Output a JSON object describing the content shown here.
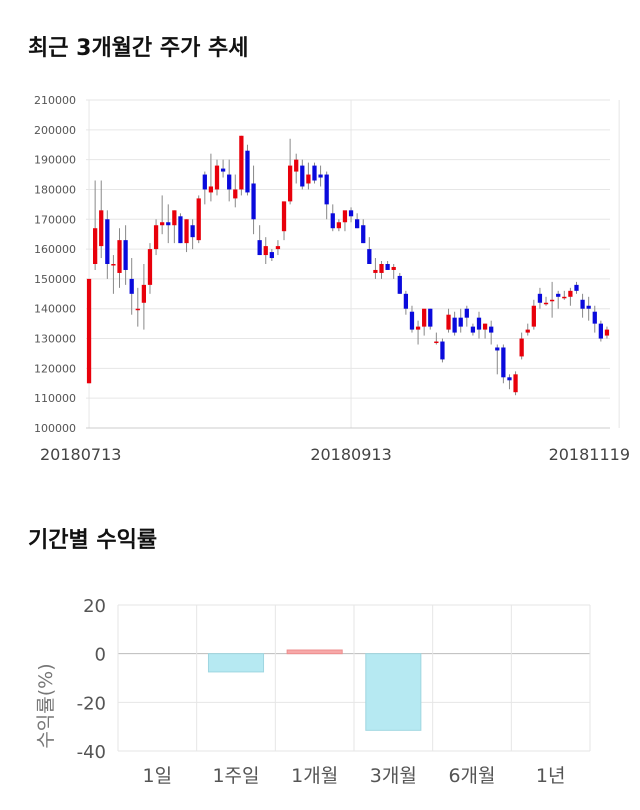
{
  "titles": {
    "price": "최근 3개월간 주가 추세",
    "returns": "기간별 수익률"
  },
  "chart_data": [
    {
      "type": "candlestick",
      "title": "최근 3개월간 주가 추세",
      "ylim": [
        100000,
        210000
      ],
      "y_ticks": [
        "100000",
        "110000",
        "120000",
        "130000",
        "140000",
        "150000",
        "160000",
        "170000",
        "180000",
        "190000",
        "200000",
        "210000"
      ],
      "x_tick_labels": [
        {
          "index": 0,
          "label": "20180713"
        },
        {
          "index": 43,
          "label": "20180913"
        },
        {
          "index": 87,
          "label": "20181119"
        }
      ],
      "colors": {
        "up": "#e8000b",
        "down": "#0a0adc",
        "wick": "#888888"
      },
      "grid": true,
      "ohlc": [
        [
          115000,
          150000,
          115000,
          150000
        ],
        [
          155000,
          183000,
          153000,
          167000
        ],
        [
          161000,
          183000,
          157000,
          173000
        ],
        [
          170000,
          173000,
          150000,
          155000
        ],
        [
          155000,
          158000,
          145000,
          155000
        ],
        [
          152000,
          167000,
          147000,
          163000
        ],
        [
          163000,
          168000,
          148000,
          153000
        ],
        [
          150000,
          157000,
          138000,
          145000
        ],
        [
          140000,
          147000,
          134000,
          140000
        ],
        [
          142000,
          155000,
          133000,
          148000
        ],
        [
          148000,
          162000,
          145000,
          160000
        ],
        [
          160000,
          170000,
          158000,
          168000
        ],
        [
          168000,
          178000,
          165000,
          169000
        ],
        [
          169000,
          175000,
          162000,
          168000
        ],
        [
          168000,
          173000,
          162000,
          173000
        ],
        [
          171000,
          172000,
          162000,
          162000
        ],
        [
          162000,
          170000,
          159000,
          170000
        ],
        [
          168000,
          170000,
          160000,
          164000
        ],
        [
          163000,
          178000,
          162000,
          177000
        ],
        [
          185000,
          186000,
          175000,
          180000
        ],
        [
          179000,
          192000,
          176000,
          181000
        ],
        [
          180000,
          190000,
          178000,
          188000
        ],
        [
          187000,
          190000,
          184000,
          186000
        ],
        [
          185000,
          190000,
          176000,
          180000
        ],
        [
          177000,
          185000,
          174000,
          180000
        ],
        [
          180000,
          198000,
          178000,
          198000
        ],
        [
          193000,
          195000,
          178000,
          179000
        ],
        [
          182000,
          188000,
          165000,
          170000
        ],
        [
          163000,
          168000,
          158000,
          158000
        ],
        [
          158000,
          164000,
          155000,
          161000
        ],
        [
          159000,
          160000,
          156000,
          157000
        ],
        [
          160000,
          163000,
          158000,
          161000
        ],
        [
          166000,
          176000,
          163000,
          176000
        ],
        [
          176000,
          197000,
          175000,
          188000
        ],
        [
          186000,
          192000,
          182000,
          190000
        ],
        [
          188000,
          190000,
          180000,
          181000
        ],
        [
          182000,
          189000,
          180000,
          185000
        ],
        [
          188000,
          189000,
          182000,
          183000
        ],
        [
          185000,
          188000,
          181000,
          184000
        ],
        [
          185000,
          186000,
          170000,
          175000
        ],
        [
          172000,
          175000,
          166000,
          167000
        ],
        [
          167000,
          170000,
          166000,
          169000
        ],
        [
          169000,
          172000,
          166000,
          173000
        ],
        [
          173000,
          174000,
          169000,
          171000
        ],
        [
          170000,
          172000,
          167000,
          167000
        ],
        [
          168000,
          170000,
          162000,
          162000
        ],
        [
          160000,
          164000,
          155000,
          155000
        ],
        [
          152000,
          157000,
          150000,
          153000
        ],
        [
          152000,
          156000,
          150000,
          155000
        ],
        [
          155000,
          156000,
          153000,
          153000
        ],
        [
          153000,
          155000,
          150000,
          154000
        ],
        [
          151000,
          152000,
          145000,
          145000
        ],
        [
          145000,
          146000,
          138000,
          140000
        ],
        [
          139000,
          141000,
          132000,
          133000
        ],
        [
          133000,
          136000,
          128000,
          134000
        ],
        [
          134000,
          139000,
          131000,
          140000
        ],
        [
          140000,
          140000,
          133000,
          134000
        ],
        [
          129000,
          132000,
          128000,
          129000
        ],
        [
          129000,
          130000,
          122000,
          123000
        ],
        [
          133000,
          140000,
          132000,
          138000
        ],
        [
          137000,
          139000,
          131000,
          132000
        ],
        [
          137000,
          140000,
          132000,
          134000
        ],
        [
          140000,
          141000,
          134000,
          137000
        ],
        [
          134000,
          135000,
          131000,
          132000
        ],
        [
          137000,
          139000,
          130000,
          133000
        ],
        [
          133000,
          135000,
          130000,
          135000
        ],
        [
          134000,
          136000,
          128000,
          132000
        ],
        [
          127000,
          128000,
          118000,
          126000
        ],
        [
          127000,
          128000,
          115000,
          117000
        ],
        [
          117000,
          118000,
          113000,
          116000
        ],
        [
          112000,
          119000,
          111000,
          118000
        ],
        [
          124000,
          132000,
          123000,
          130000
        ],
        [
          132000,
          135000,
          131000,
          133000
        ],
        [
          134000,
          143000,
          133000,
          141000
        ],
        [
          145000,
          147000,
          140000,
          142000
        ],
        [
          142000,
          144000,
          141000,
          142000
        ],
        [
          143000,
          149000,
          137000,
          143000
        ],
        [
          145000,
          146000,
          140000,
          144000
        ],
        [
          144000,
          146000,
          143000,
          144000
        ],
        [
          144000,
          147000,
          141000,
          146000
        ],
        [
          148000,
          149000,
          145000,
          146000
        ],
        [
          143000,
          145000,
          137000,
          140000
        ],
        [
          141000,
          144000,
          136000,
          140000
        ],
        [
          139000,
          141000,
          132000,
          135000
        ],
        [
          135000,
          136000,
          129000,
          130000
        ],
        [
          131000,
          134000,
          130000,
          133000
        ]
      ]
    },
    {
      "type": "bar",
      "title": "기간별 수익률",
      "categories": [
        "1일",
        "1주일",
        "1개월",
        "3개월",
        "6개월",
        "1년"
      ],
      "values": [
        0,
        -7.5,
        1.5,
        -31.5,
        0,
        0
      ],
      "ylabel": "수익률(%)",
      "ylim": [
        -40,
        20
      ],
      "y_ticks": [
        "20",
        "0",
        "-20",
        "-40"
      ],
      "colors": {
        "positive": "#f7a8a8",
        "negative": "#b6e9f2"
      },
      "grid": true
    }
  ]
}
